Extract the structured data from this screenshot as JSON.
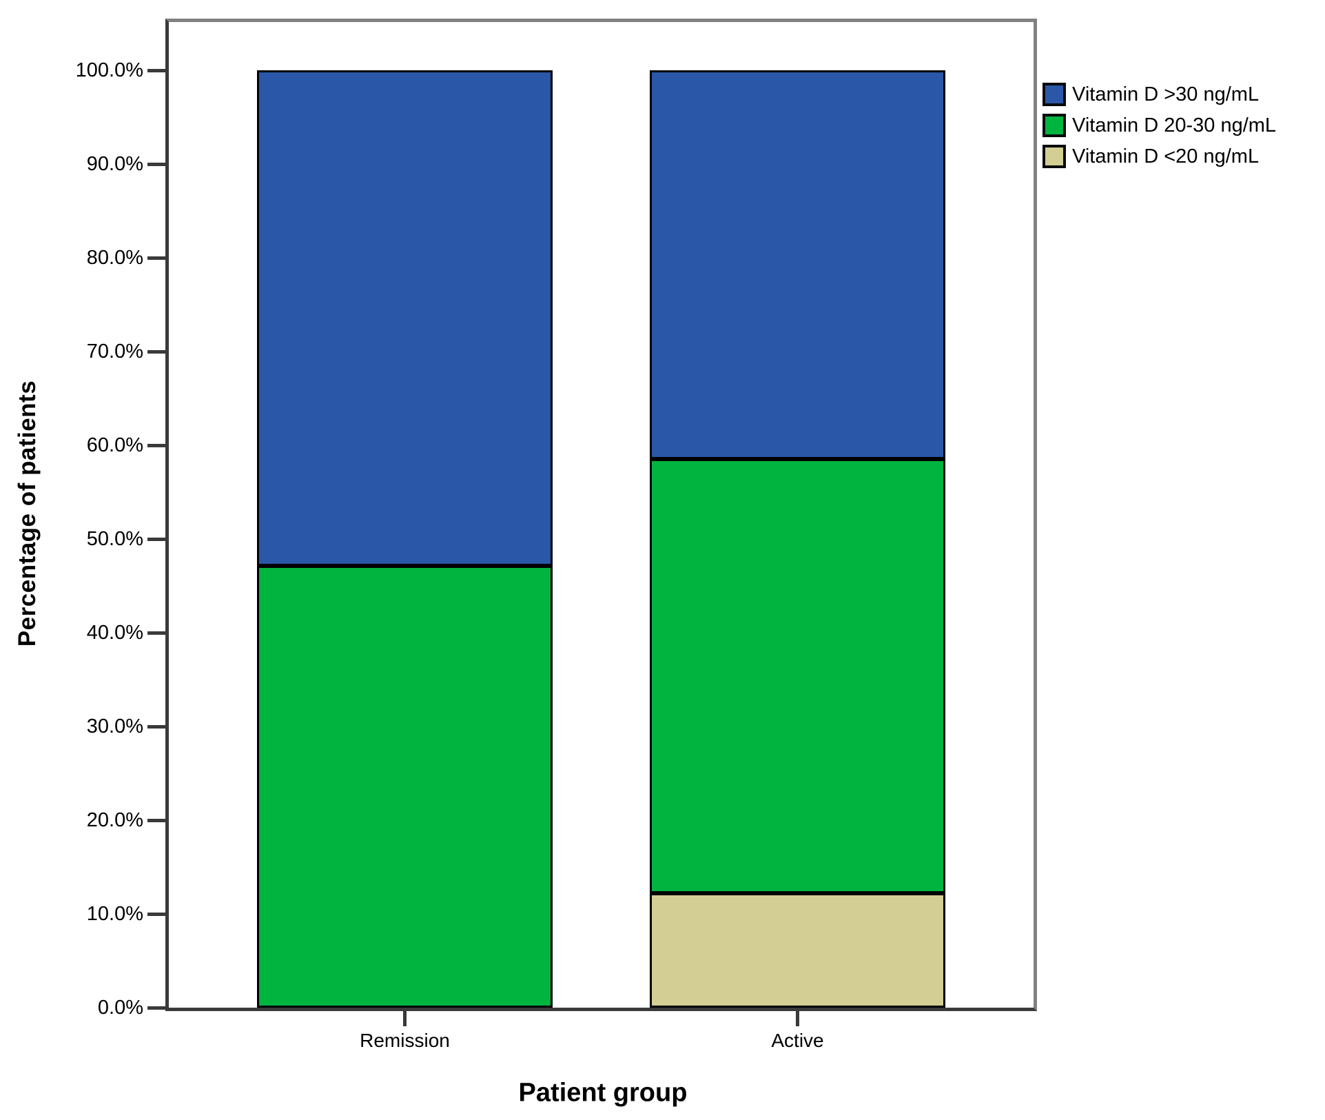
{
  "chart_data": {
    "type": "bar",
    "subtype": "stacked-percent",
    "title": "",
    "xlabel": "Patient group",
    "ylabel": "Percentage of patients",
    "categories": [
      "Remission",
      "Active"
    ],
    "series": [
      {
        "name": "Vitamin D >30 ng/mL",
        "color": "#2B57A8",
        "values": [
          52.9,
          41.5
        ]
      },
      {
        "name": "Vitamin D 20-30 ng/mL",
        "color": "#00B440",
        "values": [
          47.1,
          46.3
        ]
      },
      {
        "name": "Vitamin D <20 ng/mL",
        "color": "#D3CE93",
        "values": [
          0.0,
          12.2
        ]
      }
    ],
    "stack_order_bottom_to_top": [
      "Vitamin D <20 ng/mL",
      "Vitamin D 20-30 ng/mL",
      "Vitamin D >30 ng/mL"
    ],
    "ylim": [
      0,
      100
    ],
    "ytick_step": 10,
    "ytick_labels": [
      "0.0%",
      "10.0%",
      "20.0%",
      "30.0%",
      "40.0%",
      "50.0%",
      "60.0%",
      "70.0%",
      "80.0%",
      "90.0%",
      "100.0%"
    ],
    "legend_position": "top-right-outside",
    "grid": false,
    "colors": {
      "axis": "#3A3A3A",
      "frame": "#808080",
      "bar_border": "#000000",
      "background": "#FFFFFF"
    }
  }
}
